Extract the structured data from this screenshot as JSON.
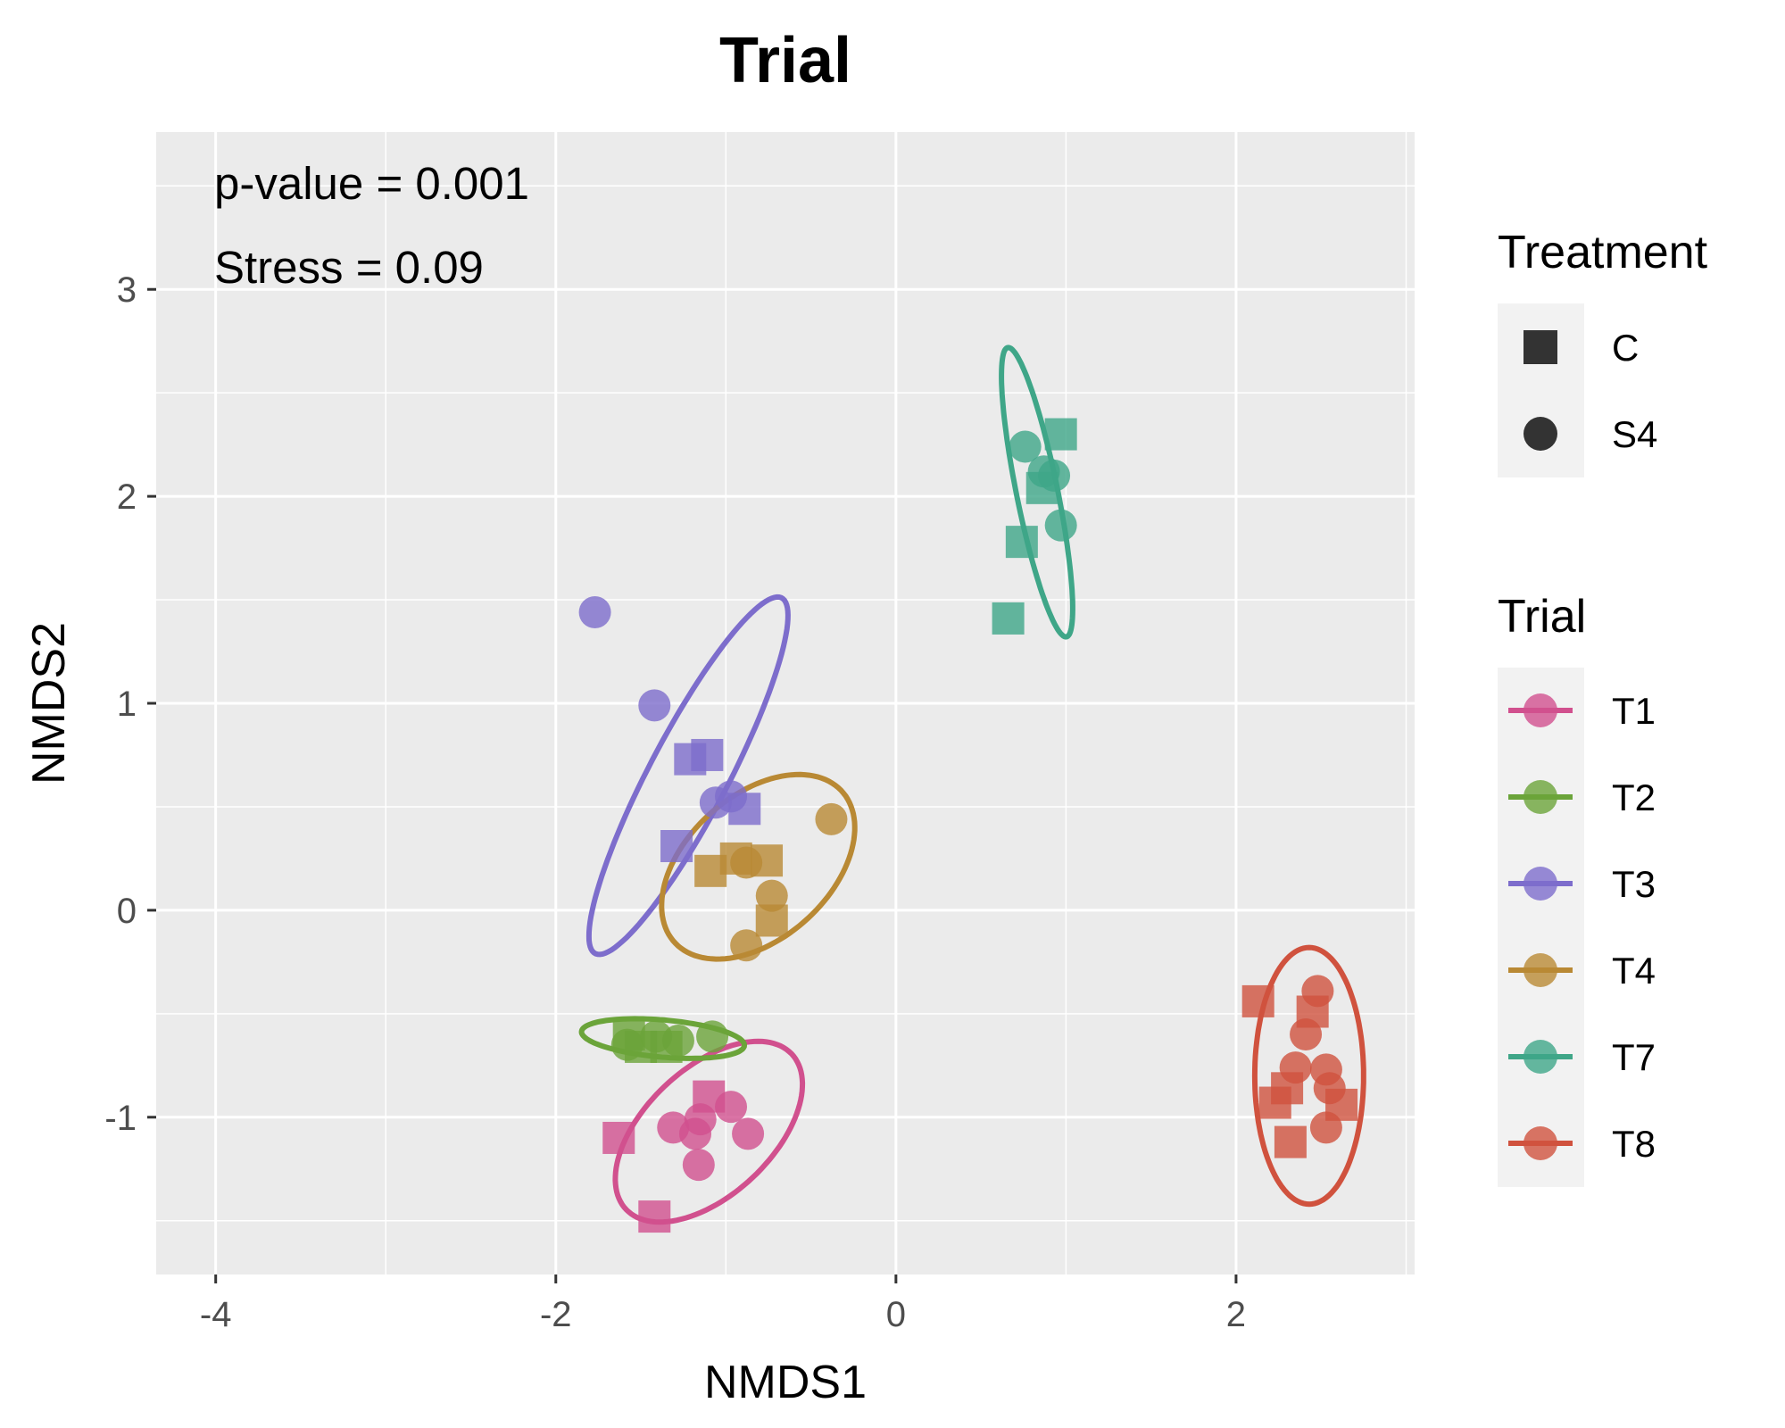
{
  "colors": {
    "panel": "#EBEBEB",
    "grid": "#FFFFFF",
    "T1": "#D1508E",
    "T2": "#6BA43A",
    "T3": "#7D6DCC",
    "T4": "#B98934",
    "T7": "#3FA688",
    "T8": "#D0523E"
  },
  "chart_data": {
    "type": "scatter",
    "title": "Trial",
    "xlabel": "NMDS1",
    "ylabel": "NMDS2",
    "xlim": [
      -4.35,
      3.05
    ],
    "ylim": [
      -1.76,
      3.76
    ],
    "x_ticks": [
      -4,
      -2,
      0,
      2
    ],
    "x_tick_labels": [
      "-4",
      "-2",
      "0",
      "2"
    ],
    "y_ticks": [
      -1,
      0,
      1,
      2,
      3
    ],
    "y_tick_labels": [
      "-1",
      "0",
      "1",
      "2",
      "3"
    ],
    "grid": true,
    "annotations": [
      "p-value =  0.001",
      "Stress =  0.09"
    ],
    "legends": {
      "shape": {
        "title": "Treatment",
        "labels": [
          "C",
          "S4"
        ]
      },
      "color": {
        "title": "Trial",
        "labels": [
          "T1",
          "T2",
          "T3",
          "T4",
          "T7",
          "T8"
        ]
      },
      "placement": "right"
    },
    "series": [
      {
        "name": "T1",
        "points": [
          {
            "x": -1.63,
            "y": -1.1,
            "treatment": "C"
          },
          {
            "x": -1.42,
            "y": -1.48,
            "treatment": "C"
          },
          {
            "x": -1.1,
            "y": -0.9,
            "treatment": "C"
          },
          {
            "x": -1.31,
            "y": -1.05,
            "treatment": "S4"
          },
          {
            "x": -1.15,
            "y": -1.01,
            "treatment": "S4"
          },
          {
            "x": -1.18,
            "y": -1.08,
            "treatment": "S4"
          },
          {
            "x": -0.97,
            "y": -0.95,
            "treatment": "S4"
          },
          {
            "x": -0.87,
            "y": -1.08,
            "treatment": "S4"
          },
          {
            "x": -1.16,
            "y": -1.23,
            "treatment": "S4"
          }
        ],
        "ellipse": {
          "cx": -1.1,
          "cy": -1.07,
          "rx": 0.62,
          "ry": 0.33,
          "angle_deg": 33
        }
      },
      {
        "name": "T2",
        "points": [
          {
            "x": -1.57,
            "y": -0.6,
            "treatment": "C"
          },
          {
            "x": -1.5,
            "y": -0.66,
            "treatment": "C"
          },
          {
            "x": -1.35,
            "y": -0.66,
            "treatment": "C"
          },
          {
            "x": -1.58,
            "y": -0.65,
            "treatment": "S4"
          },
          {
            "x": -1.41,
            "y": -0.61,
            "treatment": "S4"
          },
          {
            "x": -1.28,
            "y": -0.63,
            "treatment": "S4"
          },
          {
            "x": -1.08,
            "y": -0.61,
            "treatment": "S4"
          }
        ],
        "ellipse": {
          "cx": -1.37,
          "cy": -0.62,
          "rx": 0.48,
          "ry": 0.09,
          "angle_deg": -4
        }
      },
      {
        "name": "T3",
        "points": [
          {
            "x": -1.21,
            "y": 0.73,
            "treatment": "C"
          },
          {
            "x": -1.11,
            "y": 0.75,
            "treatment": "C"
          },
          {
            "x": -0.89,
            "y": 0.49,
            "treatment": "C"
          },
          {
            "x": -1.29,
            "y": 0.31,
            "treatment": "C"
          },
          {
            "x": -1.77,
            "y": 1.44,
            "treatment": "S4"
          },
          {
            "x": -1.42,
            "y": 0.99,
            "treatment": "S4"
          },
          {
            "x": -1.06,
            "y": 0.52,
            "treatment": "S4"
          },
          {
            "x": -0.97,
            "y": 0.55,
            "treatment": "S4"
          }
        ],
        "ellipse": {
          "cx": -1.22,
          "cy": 0.65,
          "rx": 1.02,
          "ry": 0.22,
          "angle_deg": 57
        }
      },
      {
        "name": "T4",
        "points": [
          {
            "x": -1.09,
            "y": 0.19,
            "treatment": "C"
          },
          {
            "x": -0.94,
            "y": 0.25,
            "treatment": "C"
          },
          {
            "x": -0.76,
            "y": 0.24,
            "treatment": "C"
          },
          {
            "x": -0.73,
            "y": -0.05,
            "treatment": "C"
          },
          {
            "x": -0.88,
            "y": 0.23,
            "treatment": "S4"
          },
          {
            "x": -0.73,
            "y": 0.07,
            "treatment": "S4"
          },
          {
            "x": -0.88,
            "y": -0.17,
            "treatment": "S4"
          },
          {
            "x": -0.38,
            "y": 0.44,
            "treatment": "S4"
          }
        ],
        "ellipse": {
          "cx": -0.81,
          "cy": 0.21,
          "rx": 0.62,
          "ry": 0.37,
          "angle_deg": 30
        }
      },
      {
        "name": "T7",
        "points": [
          {
            "x": 0.97,
            "y": 2.3,
            "treatment": "C"
          },
          {
            "x": 0.86,
            "y": 2.04,
            "treatment": "C"
          },
          {
            "x": 0.74,
            "y": 1.78,
            "treatment": "C"
          },
          {
            "x": 0.66,
            "y": 1.41,
            "treatment": "C"
          },
          {
            "x": 0.76,
            "y": 2.24,
            "treatment": "S4"
          },
          {
            "x": 0.87,
            "y": 2.12,
            "treatment": "S4"
          },
          {
            "x": 0.93,
            "y": 2.1,
            "treatment": "S4"
          },
          {
            "x": 0.97,
            "y": 1.86,
            "treatment": "S4"
          }
        ],
        "ellipse": {
          "cx": 0.83,
          "cy": 2.02,
          "rx": 0.72,
          "ry": 0.12,
          "angle_deg": -76
        }
      },
      {
        "name": "T8",
        "points": [
          {
            "x": 2.13,
            "y": -0.44,
            "treatment": "C"
          },
          {
            "x": 2.45,
            "y": -0.49,
            "treatment": "C"
          },
          {
            "x": 2.23,
            "y": -0.93,
            "treatment": "C"
          },
          {
            "x": 2.3,
            "y": -0.86,
            "treatment": "C"
          },
          {
            "x": 2.32,
            "y": -1.12,
            "treatment": "C"
          },
          {
            "x": 2.62,
            "y": -0.94,
            "treatment": "C"
          },
          {
            "x": 2.48,
            "y": -0.39,
            "treatment": "S4"
          },
          {
            "x": 2.41,
            "y": -0.6,
            "treatment": "S4"
          },
          {
            "x": 2.35,
            "y": -0.76,
            "treatment": "S4"
          },
          {
            "x": 2.53,
            "y": -0.77,
            "treatment": "S4"
          },
          {
            "x": 2.55,
            "y": -0.86,
            "treatment": "S4"
          },
          {
            "x": 2.53,
            "y": -1.05,
            "treatment": "S4"
          }
        ],
        "ellipse": {
          "cx": 2.43,
          "cy": -0.8,
          "rx": 0.62,
          "ry": 0.32,
          "angle_deg": -90
        }
      }
    ]
  }
}
